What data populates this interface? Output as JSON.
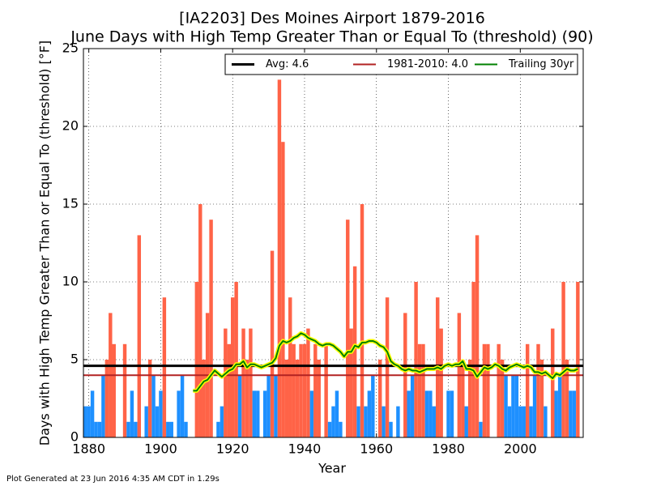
{
  "chart_data": {
    "type": "bar",
    "title": "[IA2203] Des Moines Airport 1879-2016",
    "subtitle": "June Days with High Temp Greater Than or Equal To (threshold) (90)",
    "x_label": "Year",
    "y_label": "Days with High Temp Greater Than or Equal To (threshold) [°F]",
    "footer": "Plot Generated at 23 Jun 2016 4:35 AM CDT in 1.29s",
    "x": [
      1879,
      1880,
      1881,
      1882,
      1883,
      1884,
      1885,
      1886,
      1887,
      1888,
      1889,
      1890,
      1891,
      1892,
      1893,
      1894,
      1895,
      1896,
      1897,
      1898,
      1899,
      1900,
      1901,
      1902,
      1903,
      1904,
      1905,
      1906,
      1907,
      1908,
      1909,
      1910,
      1911,
      1912,
      1913,
      1914,
      1915,
      1916,
      1917,
      1918,
      1919,
      1920,
      1921,
      1922,
      1923,
      1924,
      1925,
      1926,
      1927,
      1928,
      1929,
      1930,
      1931,
      1932,
      1933,
      1934,
      1935,
      1936,
      1937,
      1938,
      1939,
      1940,
      1941,
      1942,
      1943,
      1944,
      1945,
      1946,
      1947,
      1948,
      1949,
      1950,
      1951,
      1952,
      1953,
      1954,
      1955,
      1956,
      1957,
      1958,
      1959,
      1960,
      1961,
      1962,
      1963,
      1964,
      1965,
      1966,
      1967,
      1968,
      1969,
      1970,
      1971,
      1972,
      1973,
      1974,
      1975,
      1976,
      1977,
      1978,
      1979,
      1980,
      1981,
      1982,
      1983,
      1984,
      1985,
      1986,
      1987,
      1988,
      1989,
      1990,
      1991,
      1992,
      1993,
      1994,
      1995,
      1996,
      1997,
      1998,
      1999,
      2000,
      2001,
      2002,
      2003,
      2004,
      2005,
      2006,
      2007,
      2008,
      2009,
      2010,
      2011,
      2012,
      2013,
      2014,
      2015,
      2016
    ],
    "values": [
      2,
      2,
      3,
      1,
      1,
      4,
      5,
      8,
      6,
      0,
      0,
      6,
      1,
      3,
      1,
      13,
      0,
      2,
      5,
      4,
      2,
      3,
      9,
      1,
      1,
      0,
      3,
      4,
      1,
      0,
      0,
      10,
      15,
      5,
      8,
      14,
      0,
      1,
      2,
      7,
      6,
      9,
      10,
      4,
      7,
      5,
      7,
      3,
      3,
      0,
      3,
      4,
      12,
      4,
      23,
      19,
      5,
      9,
      6,
      5,
      6,
      6,
      7,
      3,
      6,
      5,
      0,
      6,
      1,
      2,
      3,
      1,
      0,
      14,
      7,
      11,
      2,
      15,
      2,
      3,
      4,
      0,
      5,
      2,
      9,
      1,
      0,
      2,
      0,
      8,
      3,
      4,
      10,
      6,
      6,
      3,
      3,
      2,
      9,
      7,
      0,
      3,
      3,
      0,
      8,
      5,
      2,
      5,
      10,
      13,
      1,
      6,
      6,
      0,
      0,
      6,
      5,
      4,
      2,
      4,
      4,
      2,
      2,
      6,
      2,
      4,
      6,
      5,
      2,
      0,
      7,
      3,
      4,
      10,
      5,
      3,
      3,
      10
    ],
    "bar_colors": {
      "above": "#ff6347",
      "below": "#1e90ff"
    },
    "reference_lines": [
      {
        "name": "Avg: 4.6",
        "value": 4.6,
        "color": "#000000"
      },
      {
        "name": "1981-2010: 4.0",
        "value": 4.0,
        "color": "#b22222"
      }
    ],
    "trailing": {
      "name": "Trailing 30yr",
      "color": "#008000",
      "outline": "#ffff00",
      "values": [
        null,
        null,
        null,
        null,
        null,
        null,
        null,
        null,
        null,
        null,
        null,
        null,
        null,
        null,
        null,
        null,
        null,
        null,
        null,
        null,
        null,
        null,
        null,
        null,
        null,
        null,
        null,
        null,
        null,
        null,
        3.0,
        3.0,
        3.3,
        3.6,
        3.7,
        4.0,
        4.3,
        4.1,
        3.9,
        4.1,
        4.3,
        4.4,
        4.7,
        4.7,
        4.9,
        4.5,
        4.7,
        4.7,
        4.6,
        4.5,
        4.6,
        4.7,
        4.8,
        5.1,
        5.9,
        6.2,
        6.1,
        6.2,
        6.4,
        6.5,
        6.7,
        6.6,
        6.4,
        6.3,
        6.2,
        6.0,
        5.9,
        6.0,
        6.0,
        5.9,
        5.7,
        5.5,
        5.2,
        5.5,
        5.5,
        5.9,
        5.8,
        6.1,
        6.1,
        6.2,
        6.2,
        6.1,
        5.9,
        5.8,
        5.5,
        4.9,
        4.7,
        4.6,
        4.4,
        4.3,
        4.4,
        4.3,
        4.3,
        4.2,
        4.3,
        4.4,
        4.4,
        4.4,
        4.5,
        4.4,
        4.6,
        4.7,
        4.6,
        4.7,
        4.7,
        4.9,
        4.4,
        4.4,
        4.3,
        3.9,
        4.2,
        4.5,
        4.4,
        4.5,
        4.7,
        4.6,
        4.4,
        4.3,
        4.5,
        4.6,
        4.7,
        4.6,
        4.5,
        4.6,
        4.5,
        4.2,
        4.2,
        4.1,
        4.2,
        4.0,
        3.8,
        4.1,
        4.0,
        4.2,
        4.4,
        4.3,
        4.3,
        4.4
      ]
    },
    "xlim": [
      1878.5,
      2017.5
    ],
    "ylim": [
      0,
      25
    ],
    "xticks": [
      1880,
      1900,
      1920,
      1940,
      1960,
      1980,
      2000
    ],
    "yticks": [
      0,
      5,
      10,
      15,
      20,
      25
    ],
    "grid": true,
    "legend": "upper right"
  }
}
